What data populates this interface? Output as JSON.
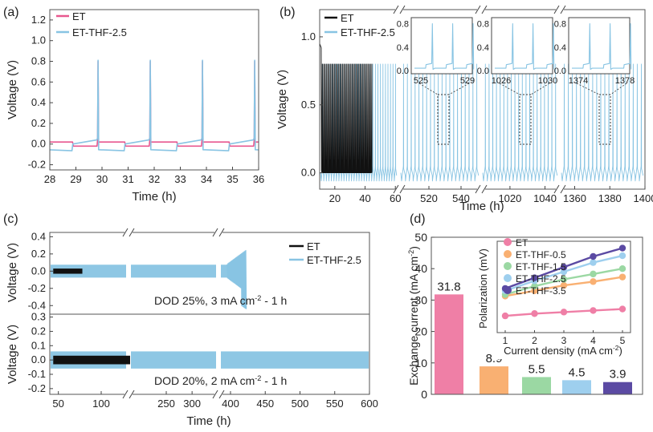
{
  "colors": {
    "et": "#e8578f",
    "thf": "#88c4e3",
    "black": "#111111",
    "bars": [
      "#ef7fa6",
      "#f9b072",
      "#9bd8a3",
      "#9ecfee",
      "#5b4aa3"
    ]
  },
  "chart_data": [
    {
      "panel": "(a)",
      "type": "line",
      "xlabel": "Time (h)",
      "ylabel": "Voltage (V)",
      "xlim": [
        28,
        36
      ],
      "ylim": [
        -0.25,
        1.3
      ],
      "xticks": [
        28,
        29,
        30,
        31,
        32,
        33,
        34,
        35,
        36
      ],
      "yticks": [
        -0.2,
        0.0,
        0.2,
        0.4,
        0.6,
        0.8,
        1.0,
        1.2
      ],
      "ytick_labels": [
        "-0.2",
        "0.0",
        "0.2",
        "0.4",
        "0.6",
        "0.8",
        "1.0",
        "1.2"
      ],
      "series": [
        {
          "name": "ET",
          "color_key": "et",
          "pattern": "spikes",
          "period": 2,
          "first_spike": 29.85,
          "spike_top": 0.8,
          "low": -0.02,
          "high": 0.02
        },
        {
          "name": "ET-THF-2.5",
          "color_key": "thf",
          "pattern": "spikes",
          "period": 2,
          "first_spike": 29.85,
          "spike_top": 0.81,
          "low": -0.055,
          "high": 0.04
        }
      ]
    },
    {
      "panel": "(b)",
      "type": "line",
      "xlabel": "Time (h)",
      "ylabel": "Voltage (V)",
      "ylim": [
        -0.12,
        1.2
      ],
      "yticks": [
        0.0,
        0.5,
        1.0
      ],
      "ytick_labels": [
        "0.0",
        "0.5",
        "1.0"
      ],
      "segments": [
        {
          "range": [
            10,
            62
          ],
          "ticks": [
            20,
            40,
            60
          ]
        },
        {
          "range": [
            502,
            552
          ],
          "ticks": [
            520,
            540
          ]
        },
        {
          "range": [
            1004,
            1048
          ],
          "ticks": [
            1020,
            1040
          ]
        },
        {
          "range": [
            1352,
            1400
          ],
          "ticks": [
            1360,
            1380,
            1400
          ]
        }
      ],
      "series": [
        {
          "name": "ET",
          "color_key": "black",
          "end_time": 45,
          "spike_top": 0.8
        },
        {
          "name": "ET-THF-2.5",
          "color_key": "thf",
          "spike_top": 0.8
        }
      ],
      "insets": [
        {
          "x_range": [
            525,
            529
          ],
          "xtick_labels": [
            "525",
            "529"
          ],
          "y_labels": [
            "0.0",
            "0.4",
            "0.8"
          ]
        },
        {
          "x_range": [
            1026,
            1030
          ],
          "xtick_labels": [
            "1026",
            "1030"
          ],
          "y_labels": [
            "0.0",
            "0.4",
            "0.8"
          ]
        },
        {
          "x_range": [
            1374,
            1378
          ],
          "xtick_labels": [
            "1374",
            "1378"
          ],
          "y_labels": [
            "0.0",
            "0.4",
            "0.8"
          ]
        }
      ]
    },
    {
      "panel": "(c)",
      "type": "line",
      "xlabel": "Time (h)",
      "ylabel": "Voltage (V)",
      "segments": [
        {
          "range": [
            40,
            130
          ],
          "ticks": [
            50,
            100
          ]
        },
        {
          "range": [
            180,
            348
          ],
          "ticks": [
            250,
            300
          ]
        },
        {
          "range": [
            385,
            600
          ],
          "ticks": [
            400,
            450,
            500,
            550,
            600
          ]
        }
      ],
      "upper": {
        "annotation": "DOD 25%, 3 mA cm",
        "annotation_sup": "-2",
        "annotation_tail": " - 1 h",
        "ylim": [
          -0.5,
          0.45
        ],
        "yticks": [
          -0.4,
          -0.2,
          0.0,
          0.2,
          0.4
        ],
        "ytick_labels": [
          "-0.4",
          "-0.2",
          "0.0",
          "0.2",
          "0.4"
        ],
        "series": [
          {
            "name": "ET",
            "color_key": "black",
            "end_time": 78,
            "amp": 0.03
          },
          {
            "name": "ET-THF-2.5",
            "color_key": "thf",
            "end_time": 422,
            "amp": 0.075
          }
        ]
      },
      "lower": {
        "annotation": "DOD 20%, 2 mA cm",
        "annotation_sup": "-2",
        "annotation_tail": " - 1 h",
        "ylim": [
          -0.24,
          0.32
        ],
        "yticks": [
          -0.2,
          -0.1,
          0.0,
          0.1,
          0.2,
          0.3
        ],
        "ytick_labels": [
          "-0.2",
          "-0.1",
          "0.0",
          "0.1",
          "0.2",
          "0.3"
        ],
        "series": [
          {
            "name": "ET",
            "color_key": "black",
            "end_time": 150,
            "amp": 0.03
          },
          {
            "name": "ET-THF-2.5",
            "color_key": "thf",
            "end_time": 600,
            "amp": 0.06
          }
        ]
      },
      "legend": [
        "ET",
        "ET-THF-2.5"
      ]
    },
    {
      "panel": "(d)",
      "type": "bar",
      "ylabel": "Exchange current (mA cm",
      "ylabel_sup": "-2",
      "ylabel_tail": ")",
      "ylim": [
        0,
        50
      ],
      "yticks": [
        0,
        10,
        20,
        30,
        40,
        50
      ],
      "ytick_labels": [
        "0",
        "10",
        "20",
        "30",
        "40",
        "50"
      ],
      "categories": [
        "ET",
        "ET-THF-0.5",
        "ET-THF-1.5",
        "ET-THF-2.5",
        "ET-THF-3.5"
      ],
      "values": [
        31.8,
        8.9,
        5.5,
        4.5,
        3.9
      ],
      "value_labels": [
        "31.8",
        "8.9",
        "5.5",
        "4.5",
        "3.9"
      ],
      "inset": {
        "type": "scatter_line",
        "xlabel": "Current density (mA cm",
        "xlabel_sup": "-2",
        "xlabel_tail": ")",
        "ylabel": "Polarization (mV)",
        "xticks": [
          1,
          2,
          3,
          4,
          5
        ],
        "xtick_labels": [
          "1",
          "2",
          "3",
          "4",
          "5"
        ],
        "x": [
          1,
          2,
          3,
          4,
          5
        ],
        "ylim": [
          0,
          120
        ],
        "legend": [
          "ET",
          "ET-THF-0.5",
          "ET-THF-1.5",
          "ET-THF-2.5",
          "ET-THF-3.5"
        ],
        "series": [
          {
            "name": "ET",
            "values": [
              22,
              25,
              27,
              29,
              31
            ]
          },
          {
            "name": "ET-THF-0.5",
            "values": [
              48,
              55,
              62,
              67,
              73
            ]
          },
          {
            "name": "ET-THF-1.5",
            "values": [
              50,
              61,
              70,
              77,
              84
            ]
          },
          {
            "name": "ET-THF-2.5",
            "values": [
              55,
              68,
              80,
              92,
              101
            ]
          },
          {
            "name": "ET-THF-3.5",
            "values": [
              58,
              72,
              86,
              100,
              111
            ]
          }
        ]
      }
    }
  ]
}
